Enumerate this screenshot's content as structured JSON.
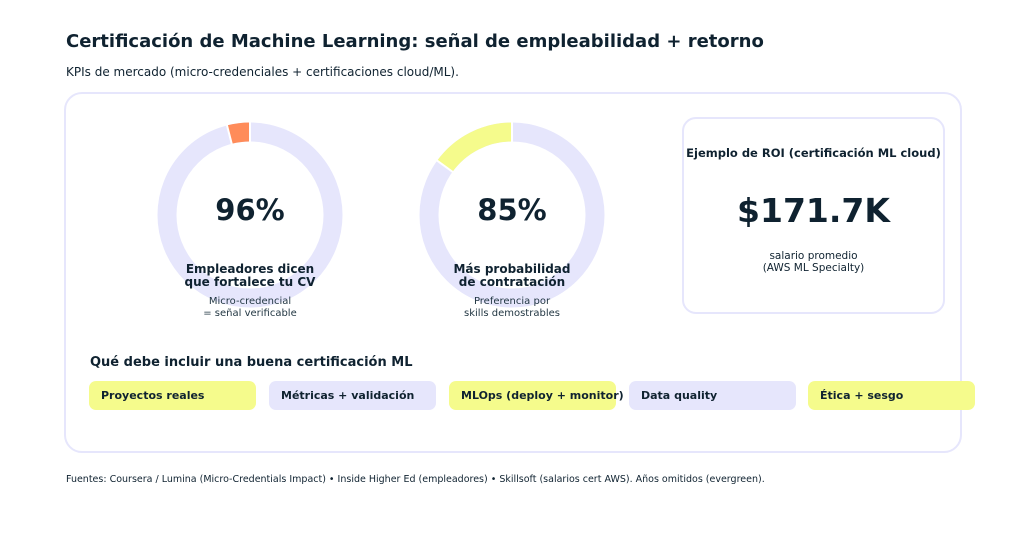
{
  "header": {
    "title": "Certificación de Machine Learning: señal de empleabilidad + retorno",
    "subtitle": "KPIs de mercado (micro-credenciales + certificaciones cloud/ML)."
  },
  "colors": {
    "track": "#e6e6fc",
    "orange": "#ff8c5a",
    "yellow": "#f5fb8c",
    "text": "#0f2230"
  },
  "chart_data": [
    {
      "type": "pie",
      "title": "Empleadores dicen que fortalece tu CV",
      "value_label": "96%",
      "values": [
        96,
        4
      ],
      "note": "Micro-credencial = señal verificable"
    },
    {
      "type": "pie",
      "title": "Más probabilidad de contratación",
      "value_label": "85%",
      "values": [
        85,
        15
      ],
      "note": "Preferencia por skills demostrables"
    }
  ],
  "kpis": [
    {
      "value": "96%",
      "label1": "Empleadores dicen",
      "label2": "que fortalece tu CV",
      "sub1": "Micro-credencial",
      "sub2": "= señal verificable",
      "pct": 96
    },
    {
      "value": "85%",
      "label1": "Más probabilidad",
      "label2": "de contratación",
      "sub1": "Preferencia por",
      "sub2": "skills demostrables",
      "pct": 85
    }
  ],
  "roi": {
    "title": "Ejemplo de ROI (certificación ML cloud)",
    "value": "$171.7K",
    "sub1": "salario promedio",
    "sub2": "(AWS ML Specialty)"
  },
  "section": {
    "title": "Qué debe incluir una buena certificación ML",
    "chips": [
      "Proyectos reales",
      "Métricas + validación",
      "MLOps (deploy + monitor)",
      "Data quality",
      "Ética + sesgo"
    ]
  },
  "footer": "Fuentes: Coursera / Lumina (Micro-Credentials Impact) • Inside Higher Ed (empleadores) • Skillsoft (salarios cert AWS). Años omitidos (evergreen)."
}
